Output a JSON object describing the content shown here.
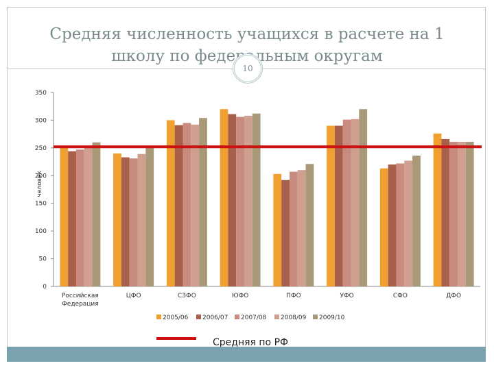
{
  "slide": {
    "title_line1": "Средняя численность учащихся в расчете на 1",
    "title_line2": "школу по федеральным округам",
    "number": "10",
    "accent_color": "#7aa1ae"
  },
  "chart_data": {
    "type": "bar",
    "ylabel": "человек",
    "ylim": [
      0,
      350
    ],
    "yticks": [
      0,
      50,
      100,
      150,
      200,
      250,
      300,
      350
    ],
    "categories": [
      "Российская Федерация",
      "ЦФО",
      "СЗФО",
      "ЮФО",
      "ПФО",
      "УФО",
      "СФО",
      "ДФО"
    ],
    "category_lines": [
      [
        "Российская",
        "Федерация"
      ],
      [
        "ЦФО"
      ],
      [
        "СЗФО"
      ],
      [
        "ЮФО"
      ],
      [
        "ПФО"
      ],
      [
        "УФО"
      ],
      [
        "СФО"
      ],
      [
        "ДФО"
      ]
    ],
    "series": [
      {
        "name": "2005/06",
        "color": "#f0a030",
        "values": [
          252,
          240,
          300,
          320,
          203,
          290,
          213,
          276
        ]
      },
      {
        "name": "2006/07",
        "color": "#a9604a",
        "values": [
          244,
          233,
          291,
          311,
          192,
          290,
          220,
          266
        ]
      },
      {
        "name": "2007/08",
        "color": "#c98a80",
        "values": [
          247,
          231,
          295,
          306,
          207,
          301,
          222,
          261
        ]
      },
      {
        "name": "2008/09",
        "color": "#cfa090",
        "values": [
          250,
          239,
          292,
          308,
          210,
          302,
          227,
          261
        ]
      },
      {
        "name": "2009/10",
        "color": "#a89a78",
        "values": [
          260,
          252,
          304,
          312,
          221,
          320,
          236,
          261
        ]
      }
    ],
    "average_line": {
      "value": 252,
      "label": "Средняя по РФ",
      "color": "#cc1111"
    },
    "legend_position": "bottom",
    "grid": false
  }
}
